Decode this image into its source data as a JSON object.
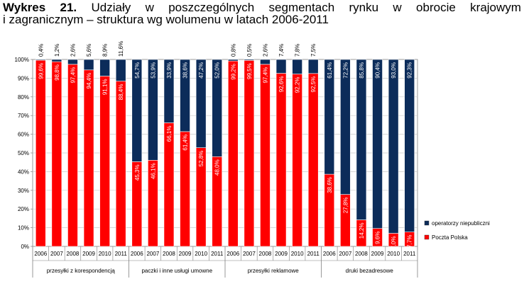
{
  "title": {
    "label": "Wykres 21.",
    "line1_words": [
      "Udziały",
      "w",
      "poszczególnych",
      "segmentach",
      "rynku",
      "w",
      "obrocie",
      "krajowym"
    ],
    "line2": "i zagranicznym – struktura wg wolumenu w latach 2006-2011"
  },
  "chart_data": {
    "type": "bar",
    "stacked": true,
    "ylim": [
      0,
      100
    ],
    "y_ticks": [
      "0%",
      "10%",
      "20%",
      "30%",
      "40%",
      "50%",
      "60%",
      "70%",
      "80%",
      "90%",
      "100%"
    ],
    "groups": [
      {
        "name": "przesyłki z korespondencją",
        "years": [
          "2006",
          "2007",
          "2008",
          "2009",
          "2010",
          "2011"
        ],
        "poczta": [
          99.6,
          98.8,
          97.4,
          94.4,
          91.1,
          88.4
        ],
        "operatorzy": [
          0.4,
          1.2,
          2.6,
          5.6,
          8.9,
          11.6
        ],
        "poczta_labels": [
          "99,6%",
          "98,8%",
          "97,4%",
          "94,4%",
          "91,1%",
          "88,4%"
        ],
        "operatorzy_labels": [
          "0,4%",
          "1,2%",
          "2,6%",
          "5,6%",
          "8,9%",
          "11,6%"
        ],
        "operatorzy_above": [
          true,
          true,
          true,
          true,
          true,
          true
        ]
      },
      {
        "name": "paczki i inne usługi umowne",
        "years": [
          "2006",
          "2007",
          "2008",
          "2009",
          "2010",
          "2011"
        ],
        "poczta": [
          45.3,
          46.1,
          66.1,
          61.4,
          52.8,
          48.0
        ],
        "operatorzy": [
          54.7,
          53.9,
          33.9,
          38.6,
          47.2,
          52.0
        ],
        "poczta_labels": [
          "45,3%",
          "46,1%",
          "66,1%",
          "61,4%",
          "52,8%",
          "48,0%"
        ],
        "operatorzy_labels": [
          "54,7%",
          "53,9%",
          "33,9%",
          "38,6%",
          "47,2%",
          "52,0%"
        ],
        "operatorzy_above": [
          false,
          false,
          false,
          false,
          false,
          false
        ]
      },
      {
        "name": "przesyłki reklamowe",
        "years": [
          "2006",
          "2007",
          "2008",
          "2009",
          "2010",
          "2011"
        ],
        "poczta": [
          99.2,
          99.5,
          97.4,
          92.6,
          92.2,
          92.5
        ],
        "operatorzy": [
          0.8,
          0.5,
          2.6,
          7.4,
          7.8,
          7.5
        ],
        "poczta_labels": [
          "99,2%",
          "99,5%",
          "97,4%",
          "92,6%",
          "92,2%",
          "92,5%"
        ],
        "operatorzy_labels": [
          "0,8%",
          "0,5%",
          "2,6%",
          "7,4%",
          "7,8%",
          "7,5%"
        ],
        "operatorzy_above": [
          true,
          true,
          true,
          true,
          true,
          true
        ]
      },
      {
        "name": "druki bezadresowe",
        "years": [
          "2006",
          "2007",
          "2008",
          "2009",
          "2010",
          "2011"
        ],
        "poczta": [
          38.6,
          27.8,
          14.2,
          9.6,
          7.0,
          7.7
        ],
        "operatorzy": [
          61.4,
          72.2,
          85.8,
          90.4,
          93.0,
          92.3
        ],
        "poczta_labels": [
          "38,6%",
          "27,8%",
          "14,2%",
          "9,6%",
          "7,0%",
          "7,7%"
        ],
        "operatorzy_labels": [
          "61,4%",
          "72,2%",
          "85,8%",
          "90,4%",
          "93,0%",
          "92,3%"
        ],
        "operatorzy_above": [
          false,
          false,
          false,
          false,
          false,
          false
        ]
      }
    ],
    "series": [
      {
        "name": "operatorzy niepubliczni",
        "color": "#0c2c5a"
      },
      {
        "name": "Poczta Polska",
        "color": "#ff0000"
      }
    ],
    "legend": "right",
    "grid": true
  }
}
